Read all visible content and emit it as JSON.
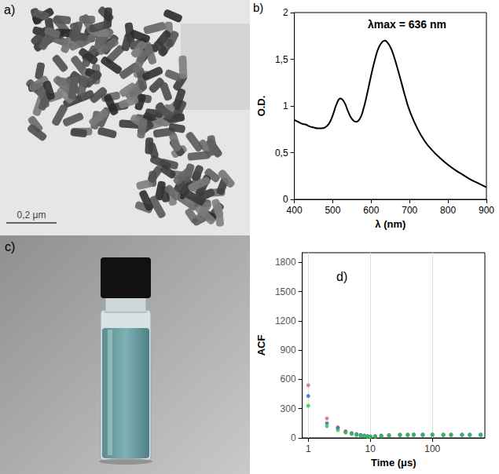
{
  "panels": {
    "a": {
      "label": "a)",
      "scale_bar": "0,2 μm"
    },
    "c": {
      "label": "c)"
    }
  },
  "chart_data": [
    {
      "type": "line",
      "title": "b)",
      "annotation": "λmax = 636 nm",
      "x_label": "λ (nm)",
      "y_label": "O.D.",
      "color": "#000000",
      "grid": false,
      "x": [
        400,
        410,
        420,
        430,
        440,
        450,
        460,
        470,
        480,
        490,
        500,
        510,
        520,
        530,
        540,
        550,
        560,
        570,
        580,
        590,
        600,
        610,
        620,
        630,
        636,
        640,
        650,
        660,
        670,
        680,
        690,
        700,
        720,
        740,
        760,
        780,
        800,
        820,
        840,
        860,
        880,
        900
      ],
      "values": [
        0.85,
        0.83,
        0.81,
        0.8,
        0.78,
        0.77,
        0.76,
        0.76,
        0.77,
        0.81,
        0.9,
        1.02,
        1.08,
        1.04,
        0.94,
        0.86,
        0.83,
        0.86,
        0.97,
        1.14,
        1.33,
        1.5,
        1.63,
        1.69,
        1.7,
        1.69,
        1.63,
        1.52,
        1.38,
        1.23,
        1.08,
        0.95,
        0.76,
        0.62,
        0.52,
        0.44,
        0.37,
        0.31,
        0.26,
        0.21,
        0.17,
        0.13
      ],
      "xlim": [
        400,
        900
      ],
      "xticks": [
        400,
        500,
        600,
        700,
        800,
        900
      ],
      "ylim": [
        0,
        2
      ],
      "yticks": [
        0,
        {
          "value": 0.5,
          "label": "0,5"
        },
        1,
        {
          "value": 1.5,
          "label": "1,5"
        },
        2
      ]
    },
    {
      "type": "scatter",
      "title": "d)",
      "x_label": "Time (μs)",
      "y_label": "ACF",
      "log": "x",
      "grid": true,
      "marker": "circle",
      "x": [
        1,
        2,
        3,
        4,
        5,
        6,
        7,
        8,
        9,
        10,
        12,
        15,
        20,
        30,
        40,
        50,
        70,
        100,
        150,
        200,
        300,
        400,
        600
      ],
      "series": [
        {
          "color": "#e0607a",
          "values": [
            540,
            200,
            110,
            70,
            50,
            40,
            30,
            25,
            20,
            15,
            20,
            25,
            30,
            35,
            35,
            30,
            35,
            30,
            35,
            30,
            30,
            35,
            30
          ]
        },
        {
          "color": "#3a5fd0",
          "values": [
            430,
            150,
            100,
            60,
            45,
            35,
            28,
            20,
            15,
            12,
            15,
            20,
            25,
            30,
            30,
            35,
            30,
            35,
            30,
            35,
            35,
            30,
            35
          ]
        },
        {
          "color": "#22cc44",
          "values": [
            330,
            120,
            80,
            55,
            40,
            30,
            22,
            18,
            12,
            10,
            12,
            18,
            22,
            28,
            30,
            32,
            35,
            32,
            32,
            30,
            30,
            32,
            30
          ]
        }
      ],
      "xlim": [
        0.8,
        700
      ],
      "xticks": [
        1,
        10,
        100
      ],
      "ylim": [
        0,
        1900
      ],
      "yticks": [
        0,
        300,
        600,
        900,
        1200,
        1500,
        1800
      ]
    }
  ]
}
